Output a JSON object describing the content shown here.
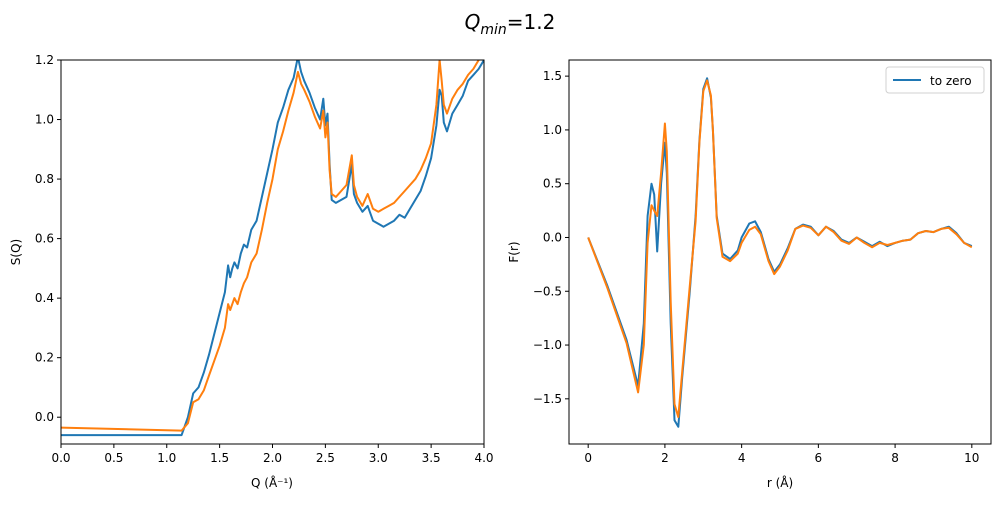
{
  "figure": {
    "title_base": "Q",
    "title_sub": "min",
    "title_rest": "=1.2"
  },
  "colors": {
    "series1": "#1f77b4",
    "series2": "#ff7f0e"
  },
  "chart_data": [
    {
      "type": "line",
      "xlabel": "Q (Å⁻¹)",
      "ylabel": "S(Q)",
      "xlim": [
        0,
        4
      ],
      "ylim": [
        -0.09,
        1.2
      ],
      "xticks": [
        0.0,
        0.5,
        1.0,
        1.5,
        2.0,
        2.5,
        3.0,
        3.5,
        4.0
      ],
      "xtick_labels": [
        "0.0",
        "0.5",
        "1.0",
        "1.5",
        "2.0",
        "2.5",
        "3.0",
        "3.5",
        "4.0"
      ],
      "yticks": [
        0.0,
        0.2,
        0.4,
        0.6,
        0.8,
        1.0,
        1.2
      ],
      "ytick_labels": [
        "0.0",
        "0.2",
        "0.4",
        "0.6",
        "0.8",
        "1.0",
        "1.2"
      ],
      "legend": null,
      "series": [
        {
          "color": "#1f77b4",
          "x": [
            0,
            1.14,
            1.2,
            1.25,
            1.3,
            1.35,
            1.4,
            1.45,
            1.5,
            1.55,
            1.58,
            1.6,
            1.62,
            1.64,
            1.67,
            1.7,
            1.73,
            1.76,
            1.8,
            1.85,
            1.9,
            1.95,
            2.0,
            2.05,
            2.1,
            2.15,
            2.2,
            2.24,
            2.27,
            2.3,
            2.35,
            2.4,
            2.45,
            2.48,
            2.5,
            2.52,
            2.54,
            2.56,
            2.6,
            2.65,
            2.7,
            2.75,
            2.77,
            2.8,
            2.85,
            2.9,
            2.95,
            3.0,
            3.05,
            3.1,
            3.15,
            3.2,
            3.25,
            3.3,
            3.35,
            3.4,
            3.45,
            3.5,
            3.55,
            3.58,
            3.6,
            3.62,
            3.65,
            3.7,
            3.75,
            3.8,
            3.85,
            3.9,
            3.95,
            4.0
          ],
          "y": [
            -0.06,
            -0.06,
            0.0,
            0.08,
            0.1,
            0.15,
            0.21,
            0.28,
            0.35,
            0.42,
            0.51,
            0.47,
            0.5,
            0.52,
            0.5,
            0.55,
            0.58,
            0.57,
            0.63,
            0.66,
            0.74,
            0.82,
            0.9,
            0.99,
            1.04,
            1.1,
            1.14,
            1.21,
            1.16,
            1.13,
            1.09,
            1.04,
            1.0,
            1.07,
            0.98,
            1.02,
            0.85,
            0.73,
            0.72,
            0.73,
            0.74,
            0.85,
            0.75,
            0.72,
            0.69,
            0.71,
            0.66,
            0.65,
            0.64,
            0.65,
            0.66,
            0.68,
            0.67,
            0.7,
            0.73,
            0.76,
            0.81,
            0.87,
            0.98,
            1.1,
            1.08,
            0.99,
            0.96,
            1.02,
            1.05,
            1.08,
            1.13,
            1.15,
            1.17,
            1.2
          ]
        },
        {
          "color": "#ff7f0e",
          "x": [
            0,
            1.14,
            1.2,
            1.25,
            1.3,
            1.35,
            1.4,
            1.45,
            1.5,
            1.55,
            1.58,
            1.6,
            1.62,
            1.64,
            1.67,
            1.7,
            1.73,
            1.76,
            1.8,
            1.85,
            1.9,
            1.95,
            2.0,
            2.05,
            2.1,
            2.15,
            2.2,
            2.24,
            2.27,
            2.3,
            2.35,
            2.4,
            2.45,
            2.48,
            2.5,
            2.52,
            2.54,
            2.56,
            2.6,
            2.65,
            2.7,
            2.75,
            2.77,
            2.8,
            2.85,
            2.9,
            2.95,
            3.0,
            3.05,
            3.1,
            3.15,
            3.2,
            3.25,
            3.3,
            3.35,
            3.4,
            3.45,
            3.5,
            3.55,
            3.58,
            3.6,
            3.62,
            3.65,
            3.7,
            3.75,
            3.8,
            3.85,
            3.9,
            3.95,
            4.0
          ],
          "y": [
            -0.035,
            -0.045,
            -0.02,
            0.05,
            0.06,
            0.09,
            0.14,
            0.19,
            0.24,
            0.3,
            0.38,
            0.36,
            0.38,
            0.4,
            0.38,
            0.42,
            0.45,
            0.47,
            0.52,
            0.55,
            0.63,
            0.72,
            0.8,
            0.9,
            0.96,
            1.03,
            1.09,
            1.16,
            1.12,
            1.1,
            1.06,
            1.01,
            0.97,
            1.03,
            0.94,
            0.99,
            0.83,
            0.75,
            0.74,
            0.76,
            0.78,
            0.88,
            0.78,
            0.74,
            0.71,
            0.75,
            0.7,
            0.69,
            0.7,
            0.71,
            0.72,
            0.74,
            0.76,
            0.78,
            0.8,
            0.83,
            0.87,
            0.92,
            1.05,
            1.2,
            1.13,
            1.05,
            1.02,
            1.07,
            1.1,
            1.12,
            1.15,
            1.17,
            1.2,
            1.22
          ]
        }
      ]
    },
    {
      "type": "line",
      "xlabel": "r (Å)",
      "ylabel": "F(r)",
      "xlim": [
        -0.5,
        10.5
      ],
      "ylim": [
        -1.92,
        1.65
      ],
      "xticks": [
        0,
        2,
        4,
        6,
        8,
        10
      ],
      "xtick_labels": [
        "0",
        "2",
        "4",
        "6",
        "8",
        "10"
      ],
      "yticks": [
        -1.5,
        -1.0,
        -0.5,
        0.0,
        0.5,
        1.0,
        1.5
      ],
      "ytick_labels": [
        "−1.5",
        "−1.0",
        "−0.5",
        "0.0",
        "0.5",
        "1.0",
        "1.5"
      ],
      "legend": {
        "placement": "upper right",
        "entries": [
          "to zero"
        ]
      },
      "series": [
        {
          "name": "to zero",
          "color": "#1f77b4",
          "x": [
            0,
            0.5,
            1.0,
            1.3,
            1.45,
            1.55,
            1.65,
            1.72,
            1.8,
            1.9,
            2.0,
            2.05,
            2.15,
            2.25,
            2.35,
            2.45,
            2.55,
            2.65,
            2.8,
            2.9,
            3.0,
            3.1,
            3.2,
            3.25,
            3.35,
            3.5,
            3.7,
            3.9,
            4.0,
            4.2,
            4.35,
            4.5,
            4.7,
            4.85,
            5.0,
            5.2,
            5.4,
            5.6,
            5.8,
            6.0,
            6.2,
            6.4,
            6.6,
            6.8,
            7.0,
            7.2,
            7.4,
            7.6,
            7.8,
            8.0,
            8.2,
            8.4,
            8.6,
            8.8,
            9.0,
            9.2,
            9.4,
            9.6,
            9.8,
            10.0
          ],
          "y": [
            0,
            -0.45,
            -0.95,
            -1.38,
            -0.8,
            0.2,
            0.5,
            0.4,
            -0.13,
            0.5,
            0.88,
            0.6,
            -0.8,
            -1.7,
            -1.76,
            -1.3,
            -0.9,
            -0.5,
            0.2,
            0.9,
            1.38,
            1.48,
            1.3,
            1.0,
            0.2,
            -0.15,
            -0.2,
            -0.12,
            0.0,
            0.13,
            0.15,
            0.05,
            -0.2,
            -0.32,
            -0.25,
            -0.1,
            0.08,
            0.12,
            0.1,
            0.02,
            0.1,
            0.06,
            -0.02,
            -0.05,
            0.0,
            -0.04,
            -0.08,
            -0.04,
            -0.08,
            -0.05,
            -0.03,
            -0.02,
            0.04,
            0.06,
            0.05,
            0.08,
            0.1,
            0.04,
            -0.05,
            -0.08
          ]
        },
        {
          "color": "#ff7f0e",
          "x": [
            0,
            0.5,
            1.0,
            1.3,
            1.45,
            1.55,
            1.65,
            1.72,
            1.8,
            1.9,
            2.0,
            2.05,
            2.15,
            2.25,
            2.35,
            2.45,
            2.55,
            2.65,
            2.8,
            2.9,
            3.0,
            3.1,
            3.2,
            3.25,
            3.35,
            3.5,
            3.7,
            3.9,
            4.0,
            4.2,
            4.35,
            4.5,
            4.7,
            4.85,
            5.0,
            5.2,
            5.4,
            5.6,
            5.8,
            6.0,
            6.2,
            6.4,
            6.6,
            6.8,
            7.0,
            7.2,
            7.4,
            7.6,
            7.8,
            8.0,
            8.2,
            8.4,
            8.6,
            8.8,
            9.0,
            9.2,
            9.4,
            9.6,
            9.8,
            10.0
          ],
          "y": [
            0,
            -0.47,
            -0.98,
            -1.44,
            -1.0,
            -0.05,
            0.3,
            0.25,
            0.2,
            0.6,
            1.06,
            0.8,
            -0.6,
            -1.55,
            -1.67,
            -1.25,
            -0.85,
            -0.45,
            0.15,
            0.88,
            1.36,
            1.46,
            1.32,
            1.0,
            0.18,
            -0.18,
            -0.22,
            -0.15,
            -0.05,
            0.07,
            0.1,
            0.03,
            -0.22,
            -0.34,
            -0.27,
            -0.12,
            0.08,
            0.11,
            0.09,
            0.02,
            0.1,
            0.05,
            -0.03,
            -0.06,
            0.0,
            -0.05,
            -0.09,
            -0.05,
            -0.07,
            -0.05,
            -0.03,
            -0.02,
            0.04,
            0.06,
            0.05,
            0.08,
            0.09,
            0.03,
            -0.05,
            -0.09
          ]
        }
      ]
    }
  ]
}
